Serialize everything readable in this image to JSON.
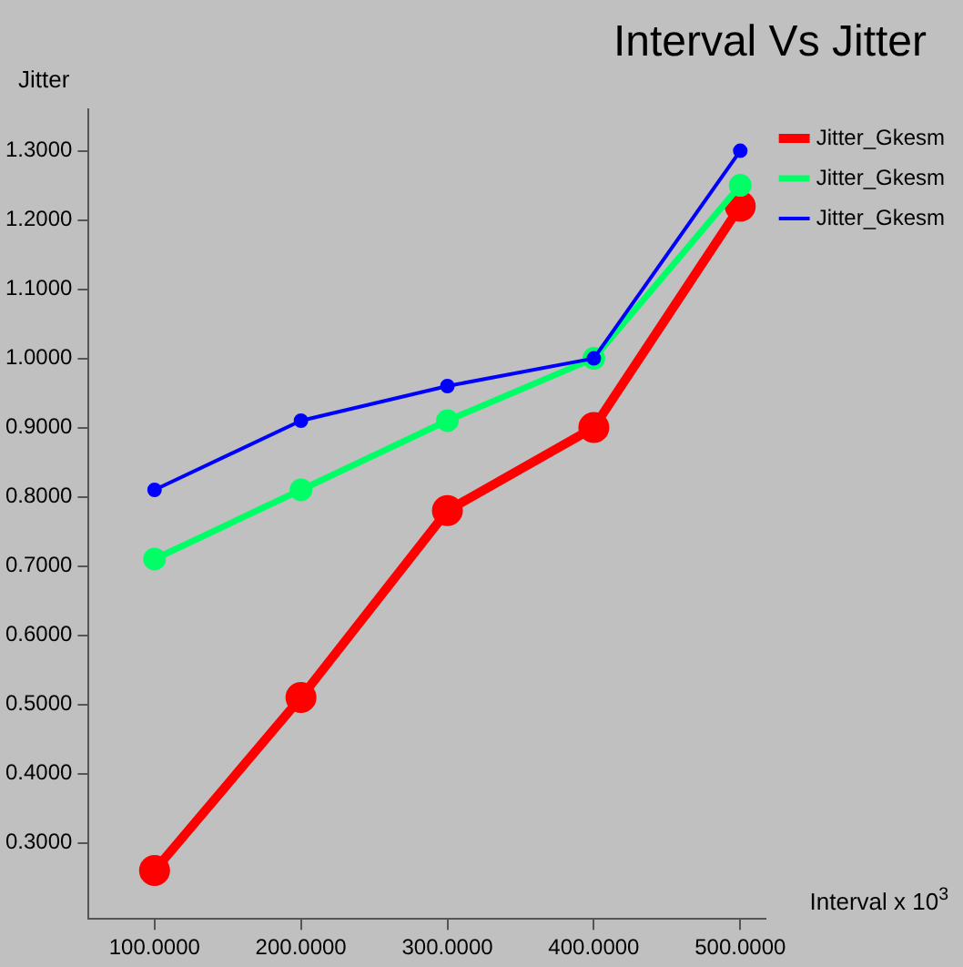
{
  "chart_data": {
    "type": "line",
    "title": "Interval Vs Jitter",
    "xlabel": "Interval x 10$^{3}$",
    "ylabel": "Jitter",
    "x": [
      100,
      200,
      300,
      400,
      500
    ],
    "series": [
      {
        "name": "Jitter_Gkesm",
        "color": "#ff0000",
        "values": [
          0.26,
          0.51,
          0.78,
          0.9,
          1.22
        ]
      },
      {
        "name": "Jitter_Gkesm",
        "color": "#00ff66",
        "values": [
          0.71,
          0.81,
          0.91,
          1.0,
          1.25
        ]
      },
      {
        "name": "Jitter_Gkesm",
        "color": "#0000ff",
        "values": [
          0.81,
          0.91,
          0.96,
          1.0,
          1.3
        ]
      }
    ],
    "xlim": [
      55,
      517
    ],
    "ylim": [
      0.19,
      1.36
    ],
    "xticks": [
      {
        "value": 100,
        "label": "100.0000"
      },
      {
        "value": 200,
        "label": "200.0000"
      },
      {
        "value": 300,
        "label": "300.0000"
      },
      {
        "value": 400,
        "label": "400.0000"
      },
      {
        "value": 500,
        "label": "500.0000"
      }
    ],
    "yticks": [
      {
        "value": 0.3,
        "label": "0.3000"
      },
      {
        "value": 0.4,
        "label": "0.4000"
      },
      {
        "value": 0.5,
        "label": "0.5000"
      },
      {
        "value": 0.6,
        "label": "0.6000"
      },
      {
        "value": 0.7,
        "label": "0.7000"
      },
      {
        "value": 0.8,
        "label": "0.8000"
      },
      {
        "value": 0.9,
        "label": "0.9000"
      },
      {
        "value": 1.0,
        "label": "1.0000"
      },
      {
        "value": 1.1,
        "label": "1.1000"
      },
      {
        "value": 1.2,
        "label": "1.2000"
      },
      {
        "value": 1.3,
        "label": "1.3000"
      }
    ],
    "grid": false,
    "legend": "top right",
    "marker": "circle",
    "line_style": "solid"
  }
}
